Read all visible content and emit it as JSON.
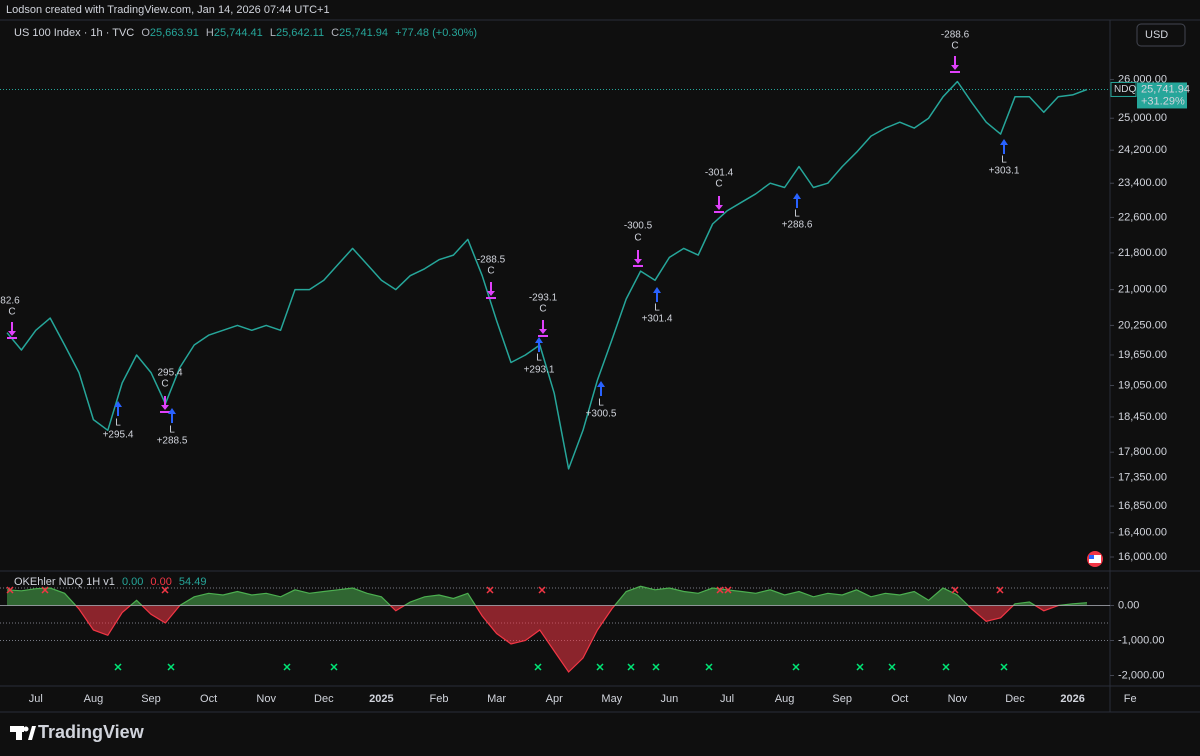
{
  "header": {
    "text": "Lodson created with TradingView.com, Jan 14, 2026 07:44 UTC+1"
  },
  "currency_button": "USD",
  "chart_data": [
    {
      "type": "line",
      "title": "US 100 Index · 1h · TVC",
      "ohlc": [
        {
          "key": "O",
          "text": "25,663.91"
        },
        {
          "key": "H",
          "text": "25,744.41"
        },
        {
          "key": "L",
          "text": "25,642.11"
        },
        {
          "key": "C",
          "text": "25,741.94"
        }
      ],
      "change": "+77.48 (+0.30%)",
      "categories": [
        null,
        null,
        "Jul",
        null,
        null,
        null,
        "Aug",
        null,
        null,
        null,
        "Sep",
        null,
        null,
        null,
        "Oct",
        null,
        null,
        null,
        "Nov",
        null,
        null,
        null,
        "Dec",
        null,
        null,
        null,
        "2025",
        null,
        null,
        null,
        "Feb",
        null,
        null,
        null,
        "Mar",
        null,
        null,
        null,
        "Apr",
        null,
        null,
        null,
        "May",
        null,
        null,
        null,
        "Jun",
        null,
        null,
        null,
        "Jul",
        null,
        null,
        null,
        "Aug",
        null,
        null,
        null,
        "Sep",
        null,
        null,
        null,
        "Oct",
        null,
        null,
        null,
        "Nov",
        null,
        null,
        null,
        "Dec",
        null,
        null,
        null,
        "2026",
        null,
        null,
        null,
        "Fe"
      ],
      "series": [
        {
          "name": "NDQ",
          "color": "#26a69a",
          "values": [
            20100,
            19750,
            20150,
            20400,
            19850,
            19300,
            18400,
            18200,
            19100,
            19650,
            19300,
            18700,
            19400,
            19850,
            20050,
            20150,
            20250,
            20150,
            20250,
            20150,
            21000,
            21000,
            21200,
            21550,
            21900,
            21550,
            21200,
            21000,
            21300,
            21450,
            21650,
            21750,
            22100,
            21300,
            20350,
            19500,
            19650,
            19850,
            18900,
            17500,
            18200,
            19150,
            19950,
            20800,
            21400,
            21200,
            21700,
            21900,
            21750,
            22450,
            22750,
            22950,
            23150,
            23400,
            23300,
            23800,
            23300,
            23400,
            23800,
            24150,
            24550,
            24750,
            24900,
            24750,
            25000,
            25550,
            25950,
            25400,
            24900,
            24600,
            25550,
            25550,
            25150,
            25550,
            25600,
            25741.94,
            null,
            null,
            null
          ]
        }
      ],
      "log_scale": true,
      "ylim": [
        15790,
        27570
      ],
      "yticks": [
        {
          "value": 16000,
          "label": "16,000.00"
        },
        {
          "value": 16400,
          "label": "16,400.00"
        },
        {
          "value": 16850,
          "label": "16,850.00"
        },
        {
          "value": 17350,
          "label": "17,350.00"
        },
        {
          "value": 17800,
          "label": "17,800.00"
        },
        {
          "value": 18450,
          "label": "18,450.00"
        },
        {
          "value": 19050,
          "label": "19,050.00"
        },
        {
          "value": 19650,
          "label": "19,650.00"
        },
        {
          "value": 20250,
          "label": "20,250.00"
        },
        {
          "value": 21000,
          "label": "21,000.00"
        },
        {
          "value": 21800,
          "label": "21,800.00"
        },
        {
          "value": 22600,
          "label": "22,600.00"
        },
        {
          "value": 23400,
          "label": "23,400.00"
        },
        {
          "value": 24200,
          "label": "24,200.00"
        },
        {
          "value": 25000,
          "label": "25,000.00"
        },
        {
          "value": 26000,
          "label": "26,000.00"
        }
      ],
      "last_price": {
        "value": 25741.94,
        "label": "25,741.94"
      },
      "last_change": "+31.29%",
      "annotations": [
        "82.6",
        "C",
        "295.4",
        "C",
        "L",
        "+295.4",
        "L",
        "+288.5",
        "-288.5",
        "C",
        "-293.1",
        "C",
        "L",
        "+293.1",
        "L",
        "+300.5",
        "-300.5",
        "C",
        "L",
        "+301.4",
        "-301.4",
        "C",
        "L",
        "+288.6",
        "-288.6",
        "C",
        "L",
        "+303.1"
      ]
    },
    {
      "type": "area",
      "legend_values": [
        "0.00",
        "0.00",
        "54.49"
      ],
      "categories": [
        null,
        null,
        "Jul",
        null,
        null,
        null,
        "Aug",
        null,
        null,
        null,
        "Sep",
        null,
        null,
        null,
        "Oct",
        null,
        null,
        null,
        "Nov",
        null,
        null,
        null,
        "Dec",
        null,
        null,
        null,
        "2025",
        null,
        null,
        null,
        "Feb",
        null,
        null,
        null,
        "Mar",
        null,
        null,
        null,
        "Apr",
        null,
        null,
        null,
        "May",
        null,
        null,
        null,
        "Jun",
        null,
        null,
        null,
        "Jul",
        null,
        null,
        null,
        "Aug",
        null,
        null,
        null,
        "Sep",
        null,
        null,
        null,
        "Oct",
        null,
        null,
        null,
        "Nov",
        null,
        null,
        null,
        "Dec",
        null,
        null,
        null,
        "2026",
        null,
        null,
        null,
        "Fe"
      ],
      "series": [
        {
          "name": "OKEhler NDQ 1H v1",
          "color": "#4caf50",
          "negative_color": "#f23645",
          "values": [
            450,
            420,
            480,
            500,
            350,
            -100,
            -700,
            -850,
            -200,
            150,
            -250,
            -500,
            0,
            250,
            350,
            300,
            400,
            300,
            350,
            250,
            450,
            350,
            400,
            450,
            500,
            350,
            250,
            -150,
            100,
            250,
            300,
            200,
            350,
            -300,
            -800,
            -1100,
            -1000,
            -700,
            -1300,
            -1900,
            -1500,
            -700,
            -100,
            400,
            550,
            450,
            500,
            400,
            350,
            500,
            450,
            400,
            350,
            450,
            300,
            400,
            250,
            350,
            300,
            450,
            250,
            350,
            300,
            400,
            150,
            500,
            300,
            -100,
            -450,
            -350,
            50,
            100,
            -150,
            0,
            50,
            80,
            null,
            null,
            null
          ]
        }
      ],
      "ylim": [
        -2300,
        900
      ],
      "yticks": [
        {
          "value": 0,
          "label": "0.00"
        },
        {
          "value": -1000,
          "label": "-1,000.00"
        },
        {
          "value": -2000,
          "label": "-2,000.00"
        }
      ],
      "levels": [
        500,
        -500,
        -1000
      ]
    }
  ],
  "footer": {
    "brand": "TradingView"
  }
}
